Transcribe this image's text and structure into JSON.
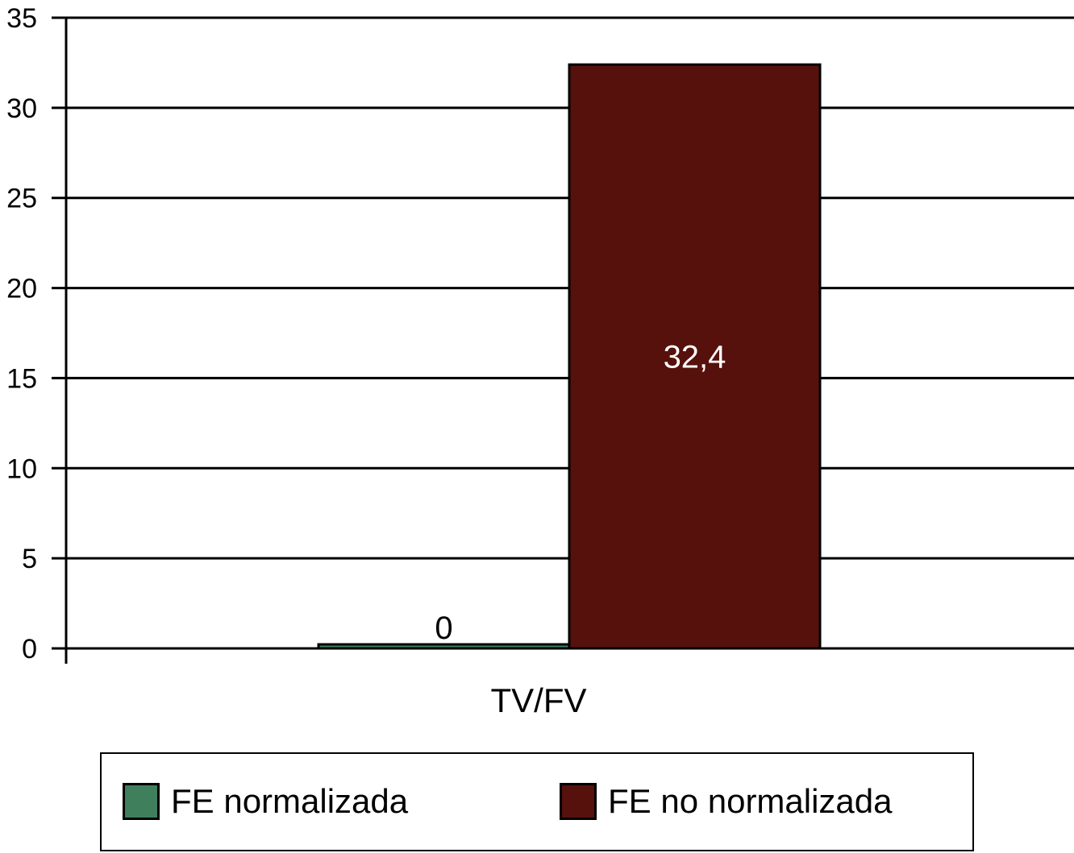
{
  "chart_data": {
    "type": "bar",
    "categories": [
      "TV/FV"
    ],
    "series": [
      {
        "name": "FE normalizada",
        "values": [
          0
        ],
        "color": "#3f7f5c",
        "label": "0"
      },
      {
        "name": "FE no normalizada",
        "values": [
          32.4
        ],
        "color": "#56110c",
        "label": "32,4"
      }
    ],
    "ylim": [
      0,
      35
    ],
    "yticks": [
      0,
      5,
      10,
      15,
      20,
      25,
      30,
      35
    ],
    "grid": true,
    "legend_position": "bottom"
  }
}
